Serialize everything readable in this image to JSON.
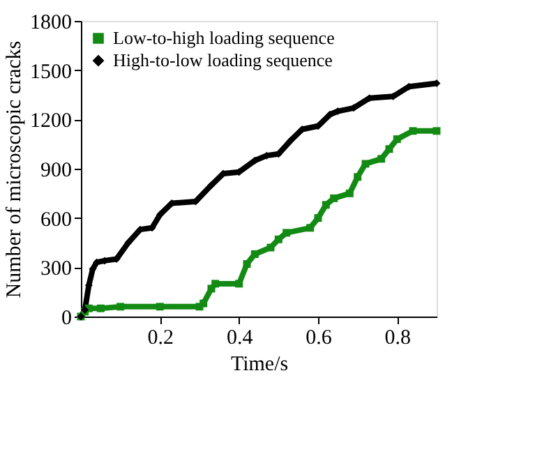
{
  "chart_data": {
    "type": "line",
    "xlabel": "Time/s",
    "ylabel": "Number of microscopic cracks",
    "xlim": [
      0,
      0.9
    ],
    "ylim": [
      0,
      1800
    ],
    "xticks": [
      0.2,
      0.4,
      0.6,
      0.8
    ],
    "yticks": [
      0,
      300,
      600,
      900,
      1200,
      1500,
      1800
    ],
    "grid": false,
    "legend": "top left",
    "line_style": "solid",
    "series": [
      {
        "name": "Low-to-high loading sequence",
        "color": "#138a13",
        "marker": "square",
        "x": [
          0,
          0.01,
          0.02,
          0.05,
          0.1,
          0.2,
          0.3,
          0.31,
          0.33,
          0.34,
          0.4,
          0.42,
          0.44,
          0.48,
          0.5,
          0.52,
          0.58,
          0.6,
          0.62,
          0.64,
          0.68,
          0.7,
          0.72,
          0.76,
          0.78,
          0.8,
          0.84,
          0.9
        ],
        "values": [
          0,
          30,
          50,
          50,
          60,
          60,
          60,
          80,
          170,
          200,
          200,
          320,
          380,
          420,
          470,
          510,
          540,
          600,
          680,
          720,
          750,
          850,
          930,
          960,
          1020,
          1080,
          1130,
          1130
        ]
      },
      {
        "name": "High-to-low loading sequence",
        "color": "#000000",
        "marker": "diamond",
        "x": [
          0,
          0.01,
          0.02,
          0.03,
          0.04,
          0.06,
          0.09,
          0.12,
          0.15,
          0.18,
          0.2,
          0.23,
          0.29,
          0.33,
          0.36,
          0.4,
          0.44,
          0.47,
          0.5,
          0.53,
          0.56,
          0.6,
          0.63,
          0.65,
          0.69,
          0.73,
          0.79,
          0.83,
          0.9
        ],
        "values": [
          0,
          40,
          190,
          290,
          330,
          340,
          350,
          450,
          530,
          540,
          620,
          690,
          700,
          800,
          870,
          880,
          950,
          980,
          990,
          1070,
          1140,
          1160,
          1230,
          1250,
          1270,
          1330,
          1340,
          1400,
          1420
        ]
      }
    ]
  }
}
